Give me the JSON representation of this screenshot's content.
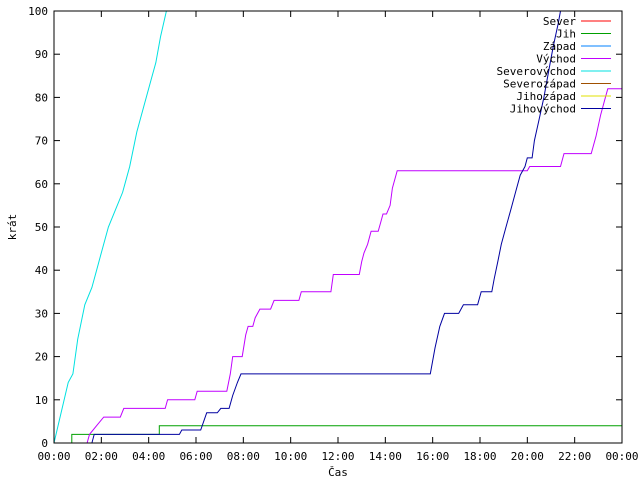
{
  "chart_data": {
    "type": "line",
    "xlabel": "Čas",
    "ylabel": "krát",
    "xlim": [
      0,
      24
    ],
    "ylim": [
      0,
      100
    ],
    "x_ticks": [
      {
        "value": 0,
        "label": "00:00"
      },
      {
        "value": 2,
        "label": "02:00"
      },
      {
        "value": 4,
        "label": "04:00"
      },
      {
        "value": 6,
        "label": "06:00"
      },
      {
        "value": 8,
        "label": "08:00"
      },
      {
        "value": 10,
        "label": "10:00"
      },
      {
        "value": 12,
        "label": "12:00"
      },
      {
        "value": 14,
        "label": "14:00"
      },
      {
        "value": 16,
        "label": "16:00"
      },
      {
        "value": 18,
        "label": "18:00"
      },
      {
        "value": 20,
        "label": "20:00"
      },
      {
        "value": 22,
        "label": "22:00"
      },
      {
        "value": 24,
        "label": "00:00"
      }
    ],
    "y_ticks": [
      0,
      10,
      20,
      30,
      40,
      50,
      60,
      70,
      80,
      90,
      100
    ],
    "grid": false,
    "legend_position": "top-right",
    "series": [
      {
        "name": "Sever",
        "color": "#ff0000",
        "points": []
      },
      {
        "name": "Jih",
        "color": "#00a000",
        "points": [
          [
            0.75,
            0
          ],
          [
            0.75,
            2
          ],
          [
            4.45,
            2
          ],
          [
            4.45,
            4
          ],
          [
            24,
            4
          ]
        ]
      },
      {
        "name": "Západ",
        "color": "#0080ff",
        "points": []
      },
      {
        "name": "Východ",
        "color": "#c000ff",
        "points": [
          [
            1.4,
            0
          ],
          [
            1.5,
            2
          ],
          [
            1.8,
            4
          ],
          [
            2.1,
            6
          ],
          [
            2.8,
            6
          ],
          [
            2.95,
            8
          ],
          [
            4.7,
            8
          ],
          [
            4.8,
            10
          ],
          [
            5.95,
            10
          ],
          [
            6.05,
            12
          ],
          [
            7.3,
            12
          ],
          [
            7.45,
            16
          ],
          [
            7.55,
            20
          ],
          [
            7.95,
            20
          ],
          [
            8.1,
            25
          ],
          [
            8.2,
            27
          ],
          [
            8.4,
            27
          ],
          [
            8.5,
            29
          ],
          [
            8.7,
            31
          ],
          [
            9.15,
            31
          ],
          [
            9.3,
            33
          ],
          [
            10.35,
            33
          ],
          [
            10.45,
            35
          ],
          [
            11.7,
            35
          ],
          [
            11.8,
            39
          ],
          [
            12.9,
            39
          ],
          [
            13.0,
            42
          ],
          [
            13.1,
            44
          ],
          [
            13.25,
            46
          ],
          [
            13.4,
            49
          ],
          [
            13.7,
            49
          ],
          [
            13.8,
            51
          ],
          [
            13.9,
            53
          ],
          [
            14.05,
            53
          ],
          [
            14.2,
            55
          ],
          [
            14.3,
            59
          ],
          [
            14.5,
            63
          ],
          [
            20.0,
            63
          ],
          [
            20.1,
            64
          ],
          [
            21.4,
            64
          ],
          [
            21.55,
            67
          ],
          [
            22.7,
            67
          ],
          [
            22.9,
            71
          ],
          [
            23.1,
            76
          ],
          [
            23.3,
            80
          ],
          [
            23.4,
            82
          ],
          [
            24,
            82
          ]
        ]
      },
      {
        "name": "Severovýchod",
        "color": "#00e0e0",
        "points": [
          [
            0,
            0
          ],
          [
            0.3,
            7
          ],
          [
            0.6,
            14
          ],
          [
            0.8,
            16
          ],
          [
            1.0,
            24
          ],
          [
            1.3,
            32
          ],
          [
            1.6,
            36
          ],
          [
            1.8,
            40
          ],
          [
            2.0,
            44
          ],
          [
            2.3,
            50
          ],
          [
            2.6,
            54
          ],
          [
            2.9,
            58
          ],
          [
            3.2,
            64
          ],
          [
            3.5,
            72
          ],
          [
            3.8,
            78
          ],
          [
            4.1,
            84
          ],
          [
            4.3,
            88
          ],
          [
            4.5,
            94
          ],
          [
            4.75,
            100
          ]
        ]
      },
      {
        "name": "Severozápad",
        "color": "#a05000",
        "points": []
      },
      {
        "name": "Jihozápad",
        "color": "#e0e000",
        "points": []
      },
      {
        "name": "Jihovýchod",
        "color": "#0000a0",
        "points": [
          [
            1.6,
            0
          ],
          [
            1.7,
            2
          ],
          [
            5.3,
            2
          ],
          [
            5.4,
            3
          ],
          [
            6.2,
            3
          ],
          [
            6.45,
            7
          ],
          [
            6.9,
            7
          ],
          [
            7.05,
            8
          ],
          [
            7.4,
            8
          ],
          [
            7.55,
            11
          ],
          [
            7.75,
            14
          ],
          [
            7.9,
            16
          ],
          [
            15.9,
            16
          ],
          [
            16.1,
            22
          ],
          [
            16.3,
            27
          ],
          [
            16.5,
            30
          ],
          [
            17.1,
            30
          ],
          [
            17.3,
            32
          ],
          [
            17.9,
            32
          ],
          [
            18.05,
            35
          ],
          [
            18.5,
            35
          ],
          [
            18.6,
            38
          ],
          [
            18.75,
            42
          ],
          [
            18.9,
            46
          ],
          [
            19.1,
            50
          ],
          [
            19.3,
            54
          ],
          [
            19.5,
            58
          ],
          [
            19.7,
            62
          ],
          [
            19.9,
            64
          ],
          [
            20.0,
            66
          ],
          [
            20.2,
            66
          ],
          [
            20.3,
            70
          ],
          [
            20.5,
            75
          ],
          [
            20.7,
            80
          ],
          [
            20.9,
            86
          ],
          [
            21.1,
            92
          ],
          [
            21.3,
            97
          ],
          [
            21.4,
            100
          ]
        ]
      }
    ]
  }
}
